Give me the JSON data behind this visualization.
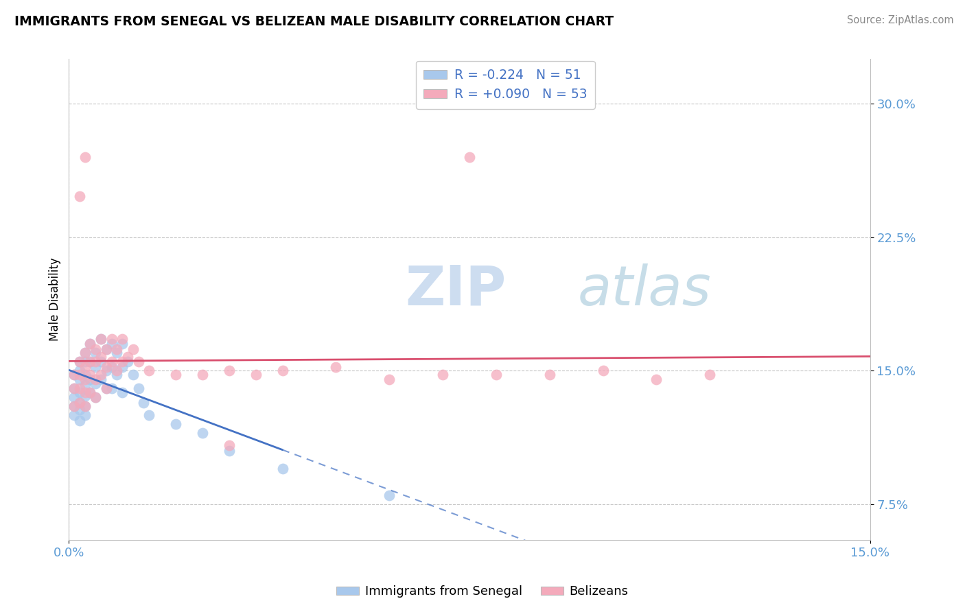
{
  "title": "IMMIGRANTS FROM SENEGAL VS BELIZEAN MALE DISABILITY CORRELATION CHART",
  "source": "Source: ZipAtlas.com",
  "ylabel": "Male Disability",
  "legend_label1": "Immigrants from Senegal",
  "legend_label2": "Belizeans",
  "r1": -0.224,
  "n1": 51,
  "r2": 0.09,
  "n2": 53,
  "xlim": [
    0.0,
    0.15
  ],
  "ylim": [
    0.055,
    0.325
  ],
  "yticks": [
    0.075,
    0.15,
    0.225,
    0.3
  ],
  "ytick_labels": [
    "7.5%",
    "15.0%",
    "22.5%",
    "30.0%"
  ],
  "xticks": [
    0.0,
    0.15
  ],
  "xtick_labels": [
    "0.0%",
    "15.0%"
  ],
  "color_blue": "#A8C8EC",
  "color_pink": "#F4AABB",
  "line_blue": "#4472C4",
  "line_pink": "#D94F6E",
  "watermark_zip": "ZIP",
  "watermark_atlas": "atlas",
  "blue_scatter_x": [
    0.001,
    0.001,
    0.001,
    0.001,
    0.001,
    0.002,
    0.002,
    0.002,
    0.002,
    0.002,
    0.002,
    0.002,
    0.003,
    0.003,
    0.003,
    0.003,
    0.003,
    0.003,
    0.003,
    0.004,
    0.004,
    0.004,
    0.004,
    0.005,
    0.005,
    0.005,
    0.005,
    0.006,
    0.006,
    0.006,
    0.007,
    0.007,
    0.007,
    0.008,
    0.008,
    0.008,
    0.009,
    0.009,
    0.01,
    0.01,
    0.01,
    0.011,
    0.012,
    0.013,
    0.014,
    0.015,
    0.02,
    0.025,
    0.03,
    0.04,
    0.06
  ],
  "blue_scatter_y": [
    0.148,
    0.14,
    0.135,
    0.13,
    0.125,
    0.155,
    0.15,
    0.145,
    0.138,
    0.132,
    0.128,
    0.122,
    0.16,
    0.155,
    0.148,
    0.142,
    0.136,
    0.13,
    0.125,
    0.165,
    0.155,
    0.145,
    0.138,
    0.16,
    0.152,
    0.143,
    0.135,
    0.168,
    0.155,
    0.145,
    0.162,
    0.15,
    0.14,
    0.165,
    0.152,
    0.14,
    0.16,
    0.148,
    0.165,
    0.152,
    0.138,
    0.155,
    0.148,
    0.14,
    0.132,
    0.125,
    0.12,
    0.115,
    0.105,
    0.095,
    0.08
  ],
  "pink_scatter_x": [
    0.001,
    0.001,
    0.001,
    0.002,
    0.002,
    0.002,
    0.002,
    0.003,
    0.003,
    0.003,
    0.003,
    0.003,
    0.004,
    0.004,
    0.004,
    0.004,
    0.005,
    0.005,
    0.005,
    0.005,
    0.006,
    0.006,
    0.006,
    0.007,
    0.007,
    0.007,
    0.008,
    0.008,
    0.009,
    0.009,
    0.01,
    0.01,
    0.011,
    0.012,
    0.013,
    0.015,
    0.02,
    0.025,
    0.03,
    0.035,
    0.04,
    0.05,
    0.06,
    0.07,
    0.08,
    0.09,
    0.1,
    0.11,
    0.12,
    0.03,
    0.003,
    0.002,
    0.075
  ],
  "pink_scatter_y": [
    0.148,
    0.14,
    0.13,
    0.155,
    0.148,
    0.14,
    0.132,
    0.16,
    0.152,
    0.145,
    0.138,
    0.13,
    0.165,
    0.155,
    0.148,
    0.138,
    0.162,
    0.155,
    0.145,
    0.135,
    0.168,
    0.158,
    0.148,
    0.162,
    0.152,
    0.14,
    0.168,
    0.155,
    0.162,
    0.15,
    0.168,
    0.155,
    0.158,
    0.162,
    0.155,
    0.15,
    0.148,
    0.148,
    0.15,
    0.148,
    0.15,
    0.152,
    0.145,
    0.148,
    0.148,
    0.148,
    0.15,
    0.145,
    0.148,
    0.108,
    0.27,
    0.248,
    0.27
  ]
}
